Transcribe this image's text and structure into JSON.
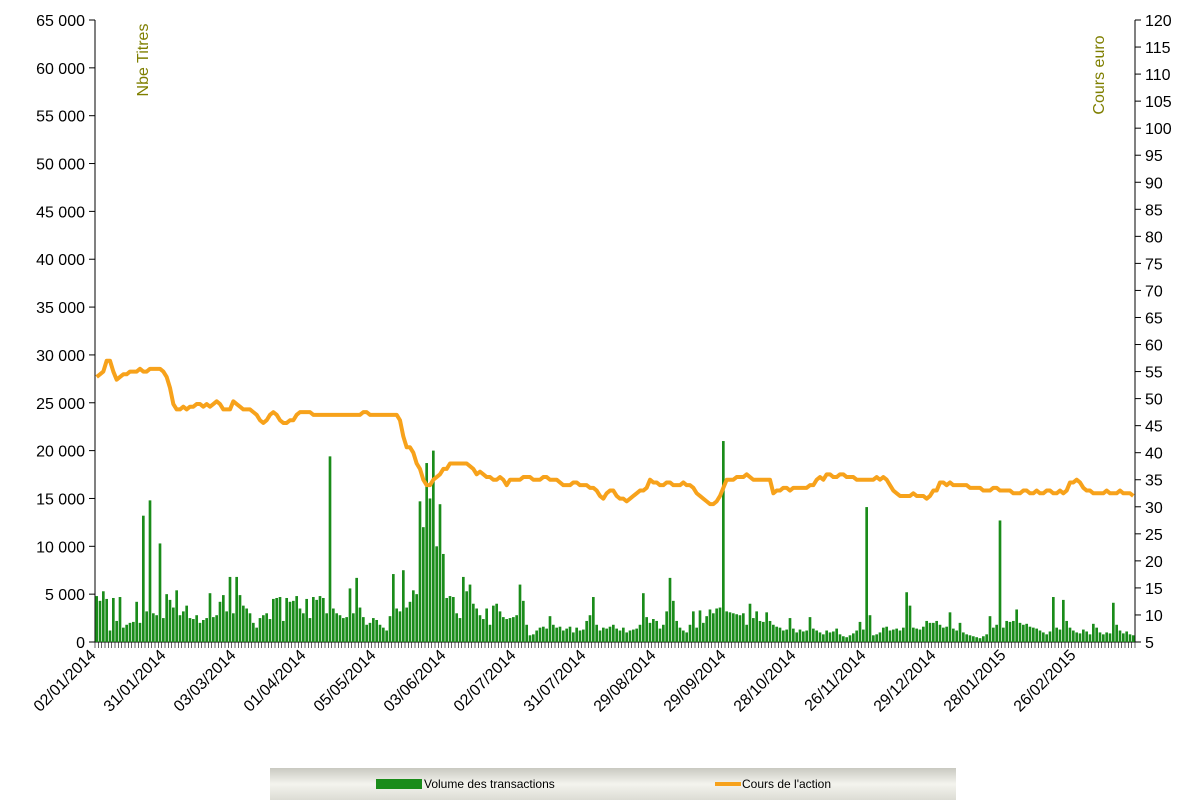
{
  "chart_data": {
    "type": "bar-line",
    "y_label": "Nbe Titres",
    "y2_label": "Cours euro",
    "categories": [
      "02/01/2014",
      null,
      null,
      null,
      null,
      null,
      null,
      null,
      null,
      null,
      null,
      null,
      null,
      null,
      null,
      null,
      null,
      null,
      null,
      null,
      null,
      "31/01/2014",
      null,
      null,
      null,
      null,
      null,
      null,
      null,
      null,
      null,
      null,
      null,
      null,
      null,
      null,
      null,
      null,
      null,
      null,
      null,
      null,
      "03/03/2014",
      null,
      null,
      null,
      null,
      null,
      null,
      null,
      null,
      null,
      null,
      null,
      null,
      null,
      null,
      null,
      null,
      null,
      null,
      null,
      null,
      "01/04/2014",
      null,
      null,
      null,
      null,
      null,
      null,
      null,
      null,
      null,
      null,
      null,
      null,
      null,
      null,
      null,
      null,
      null,
      null,
      null,
      null,
      "05/05/2014",
      null,
      null,
      null,
      null,
      null,
      null,
      null,
      null,
      null,
      null,
      null,
      null,
      null,
      null,
      null,
      null,
      null,
      null,
      null,
      null,
      "03/06/2014",
      null,
      null,
      null,
      null,
      null,
      null,
      null,
      null,
      null,
      null,
      null,
      null,
      null,
      null,
      null,
      null,
      null,
      null,
      null,
      null,
      "02/07/2014",
      null,
      null,
      null,
      null,
      null,
      null,
      null,
      null,
      null,
      null,
      null,
      null,
      null,
      null,
      null,
      null,
      null,
      null,
      null,
      null,
      "31/07/2014",
      null,
      null,
      null,
      null,
      null,
      null,
      null,
      null,
      null,
      null,
      null,
      null,
      null,
      null,
      null,
      null,
      null,
      null,
      null,
      null,
      "29/08/2014",
      null,
      null,
      null,
      null,
      null,
      null,
      null,
      null,
      null,
      null,
      null,
      null,
      null,
      null,
      null,
      null,
      null,
      null,
      null,
      null,
      "29/09/2014",
      null,
      null,
      null,
      null,
      null,
      null,
      null,
      null,
      null,
      null,
      null,
      null,
      null,
      null,
      null,
      null,
      null,
      null,
      null,
      null,
      "28/10/2014",
      null,
      null,
      null,
      null,
      null,
      null,
      null,
      null,
      null,
      null,
      null,
      null,
      null,
      null,
      null,
      null,
      null,
      null,
      null,
      null,
      "26/11/2014",
      null,
      null,
      null,
      null,
      null,
      null,
      null,
      null,
      null,
      null,
      null,
      null,
      null,
      null,
      null,
      null,
      null,
      null,
      null,
      null,
      "29/12/2014",
      null,
      null,
      null,
      null,
      null,
      null,
      null,
      null,
      null,
      null,
      null,
      null,
      null,
      null,
      null,
      null,
      null,
      null,
      null,
      null,
      "28/01/2015",
      null,
      null,
      null,
      null,
      null,
      null,
      null,
      null,
      null,
      null,
      null,
      null,
      null,
      null,
      null,
      null,
      null,
      null,
      null,
      null,
      "26/02/2015",
      null,
      null,
      null,
      null,
      null,
      null,
      null,
      null,
      null,
      null,
      null,
      null,
      null,
      null,
      null,
      null,
      null
    ],
    "series": [
      {
        "name": "Volume des transactions",
        "kind": "bar",
        "color": "#1a8c1a",
        "values": [
          4800,
          4300,
          5300,
          4500,
          1200,
          4600,
          2200,
          4700,
          1500,
          1800,
          2000,
          2100,
          4200,
          2000,
          13200,
          3200,
          14800,
          3000,
          2800,
          10300,
          2500,
          5000,
          4400,
          3600,
          5400,
          2800,
          3200,
          3800,
          2500,
          2400,
          2800,
          2000,
          2300,
          2500,
          5100,
          2600,
          2800,
          4200,
          4900,
          3200,
          6800,
          3000,
          6800,
          4900,
          3800,
          3500,
          3000,
          2000,
          1500,
          2500,
          2800,
          3000,
          2400,
          4500,
          4600,
          4700,
          2200,
          4600,
          4200,
          4300,
          4800,
          3500,
          3000,
          4500,
          2500,
          4700,
          4400,
          4800,
          4600,
          3000,
          19400,
          3500,
          3000,
          2800,
          2500,
          2600,
          5600,
          3000,
          6700,
          3600,
          2600,
          1800,
          2000,
          2500,
          2300,
          1800,
          1500,
          1200,
          2700,
          7100,
          3500,
          3200,
          7500,
          3600,
          4200,
          5400,
          5000,
          14700,
          12000,
          18700,
          15000,
          20000,
          10000,
          14400,
          9200,
          4600,
          4800,
          4700,
          3000,
          2500,
          6800,
          5300,
          6000,
          4000,
          3500,
          2800,
          2400,
          3500,
          1800,
          3800,
          4000,
          3200,
          2600,
          2400,
          2500,
          2600,
          2800,
          6000,
          4300,
          1800,
          700,
          800,
          1200,
          1500,
          1600,
          1400,
          2700,
          1800,
          1500,
          1600,
          1200,
          1400,
          1600,
          1000,
          1500,
          1200,
          1300,
          2200,
          2800,
          4700,
          1800,
          1200,
          1500,
          1400,
          1600,
          1800,
          1400,
          1200,
          1500,
          1000,
          1200,
          1300,
          1400,
          1800,
          5100,
          2600,
          2000,
          2400,
          2200,
          1400,
          1800,
          3200,
          6700,
          4300,
          2200,
          1500,
          1200,
          1000,
          1800,
          3200,
          1500,
          3300,
          2000,
          2700,
          3400,
          3000,
          3500,
          3600,
          21000,
          3200,
          3100,
          3000,
          2900,
          2800,
          3000,
          1800,
          4000,
          2500,
          3200,
          2200,
          2100,
          3100,
          2200,
          1800,
          1600,
          1500,
          1200,
          1300,
          2500,
          1400,
          1000,
          1300,
          1100,
          1200,
          2600,
          1400,
          1200,
          1000,
          800,
          1200,
          1000,
          1100,
          1400,
          800,
          600,
          500,
          700,
          900,
          1200,
          2100,
          1300,
          14100,
          2800,
          700,
          800,
          1000,
          1500,
          1600,
          1200,
          1300,
          1400,
          1200,
          1500,
          5200,
          3800,
          1500,
          1400,
          1300,
          1600,
          2200,
          2000,
          2000,
          2200,
          1800,
          1500,
          1600,
          3100,
          1400,
          1200,
          2000,
          1000,
          800,
          700,
          600,
          500,
          400,
          600,
          800,
          2700,
          1500,
          1800,
          12700,
          1500,
          2200,
          2100,
          2200,
          3400,
          2000,
          1800,
          1900,
          1600,
          1500,
          1400,
          1200,
          1000,
          800,
          1100,
          4700,
          1500,
          1300,
          4400,
          2200,
          1500,
          1200,
          1000,
          900,
          1300,
          1100,
          800,
          1900,
          1500,
          1000,
          800,
          1000,
          900,
          4100,
          1800,
          1200,
          900,
          1100,
          800,
          700
        ]
      },
      {
        "name": "Cours de l'action",
        "kind": "line",
        "axis": "y2",
        "color": "#f7a21b",
        "values": [
          54,
          54.5,
          55,
          57,
          57,
          55,
          53.5,
          54,
          54.5,
          54.5,
          55,
          55,
          55,
          55.5,
          55,
          55,
          55.5,
          55.5,
          55.5,
          55.5,
          55,
          54,
          52,
          49,
          48,
          48,
          48.5,
          48,
          48.5,
          48.5,
          49,
          49,
          48.5,
          49,
          48.5,
          49,
          49.5,
          49,
          48,
          48,
          48,
          49.5,
          49,
          48.5,
          48,
          48,
          48,
          47.5,
          47,
          46,
          45.5,
          46,
          47,
          47.5,
          47,
          46,
          45.5,
          45.5,
          46,
          46,
          47,
          47.5,
          47.5,
          47.5,
          47.5,
          47,
          47,
          47,
          47,
          47,
          47,
          47,
          47,
          47,
          47,
          47,
          47,
          47,
          47,
          47,
          47.5,
          47.5,
          47,
          47,
          47,
          47,
          47,
          47,
          47,
          47,
          47,
          46,
          43,
          41,
          41,
          40,
          38,
          37,
          35,
          34,
          34,
          35,
          35.5,
          36,
          37,
          37,
          38,
          38,
          38,
          38,
          38,
          38,
          37.5,
          37,
          36,
          36.5,
          36,
          35.5,
          35.5,
          35,
          35,
          35.5,
          35,
          34,
          35,
          35,
          35,
          35,
          35.5,
          35.5,
          35.5,
          35,
          35,
          35,
          35.5,
          35.5,
          35,
          35,
          35,
          34.5,
          34,
          34,
          34,
          34.5,
          34.5,
          34,
          34,
          34,
          33.5,
          33.5,
          33,
          32,
          31.5,
          32.5,
          33,
          33,
          32,
          31.5,
          31.5,
          31,
          31.5,
          32,
          32.5,
          33,
          33,
          33.5,
          35,
          34.5,
          34.5,
          34,
          34,
          34.5,
          34.5,
          34,
          34,
          34,
          34.5,
          34,
          34,
          33.5,
          32.5,
          32,
          31.5,
          31,
          30.5,
          30.5,
          31,
          32,
          33.5,
          35,
          35,
          35,
          35.5,
          35.5,
          35.5,
          36,
          35.5,
          35,
          35,
          35,
          35,
          35,
          35,
          32.5,
          33,
          33,
          33.5,
          33.5,
          33,
          33.5,
          33.5,
          33.5,
          33.5,
          33.5,
          34,
          34,
          35,
          35.5,
          35,
          36,
          36,
          35.5,
          35.5,
          36,
          36,
          35.5,
          35.5,
          35.5,
          35,
          35,
          35,
          35,
          35,
          35,
          35.5,
          35,
          35.5,
          35,
          34,
          33,
          32.5,
          32,
          32,
          32,
          32,
          32.5,
          32,
          32,
          32,
          31.5,
          32,
          33,
          33,
          34.5,
          34.5,
          34,
          34.5,
          34,
          34,
          34,
          34,
          34,
          33.5,
          33.5,
          33.5,
          33.5,
          33,
          33,
          33,
          33.5,
          33.5,
          33,
          33,
          33,
          33,
          32.5,
          32.5,
          32.5,
          33,
          33,
          32.5,
          32.5,
          33,
          32.5,
          32.5,
          33,
          33,
          32.5,
          32.5,
          33,
          32.5,
          33,
          34.5,
          34.5,
          35,
          34.5,
          33.5,
          33,
          33,
          32.5,
          32.5,
          32.5,
          32.5,
          33,
          32.5,
          32.5,
          32.5,
          33,
          32.5,
          32.5,
          32.5,
          32
        ]
      }
    ],
    "ylim": [
      0,
      65000
    ],
    "yticks": [
      0,
      {
        "value": 5000,
        "label": "5 000"
      },
      {
        "value": 10000,
        "label": "10 000"
      },
      {
        "value": 15000,
        "label": "15 000"
      },
      {
        "value": 20000,
        "label": "20 000"
      },
      {
        "value": 25000,
        "label": "25 000"
      },
      {
        "value": 30000,
        "label": "30 000"
      },
      {
        "value": 35000,
        "label": "35 000"
      },
      {
        "value": 40000,
        "label": "40 000"
      },
      {
        "value": 45000,
        "label": "45 000"
      },
      {
        "value": 50000,
        "label": "50 000"
      },
      {
        "value": 55000,
        "label": "55 000"
      },
      {
        "value": 60000,
        "label": "60 000"
      },
      {
        "value": 65000,
        "label": "65 000"
      }
    ],
    "y2lim": [
      5,
      120
    ],
    "y2ticks": [
      5,
      10,
      15,
      20,
      25,
      30,
      35,
      40,
      45,
      50,
      55,
      60,
      65,
      70,
      75,
      80,
      85,
      90,
      95,
      100,
      105,
      110,
      115,
      120
    ],
    "legend": "bottom"
  }
}
